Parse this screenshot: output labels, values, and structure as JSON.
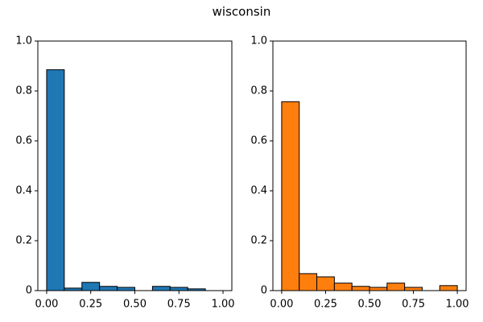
{
  "title": "wisconsin",
  "chart_data": [
    {
      "type": "histogram",
      "color": "#1f77b4",
      "bins": [
        0,
        0.1,
        0.2,
        0.3,
        0.4,
        0.5,
        0.6,
        0.7,
        0.8,
        0.9,
        1.0
      ],
      "values": [
        0.885,
        0.01,
        0.033,
        0.017,
        0.013,
        0,
        0.017,
        0.013,
        0.007,
        0
      ],
      "xlim": [
        -0.05,
        1.05
      ],
      "ylim": [
        0,
        1
      ],
      "xticks": [
        {
          "value": 0,
          "label": "0.00"
        },
        {
          "value": 0.25,
          "label": "0.25"
        },
        {
          "value": 0.5,
          "label": "0.50"
        },
        {
          "value": 0.75,
          "label": "0.75"
        },
        {
          "value": 1,
          "label": "1.00"
        }
      ],
      "yticks": [
        0.0,
        0.2,
        0.4,
        0.6,
        0.8,
        {
          "value": 1,
          "label": "1.0"
        }
      ]
    },
    {
      "type": "histogram",
      "color": "#ff7f0e",
      "bins": [
        0,
        0.1,
        0.2,
        0.3,
        0.4,
        0.5,
        0.6,
        0.7,
        0.8,
        0.9,
        1.0
      ],
      "values": [
        0.757,
        0.068,
        0.055,
        0.03,
        0.017,
        0.013,
        0.03,
        0.013,
        0,
        0.02
      ],
      "xlim": [
        -0.05,
        1.05
      ],
      "ylim": [
        0,
        1
      ],
      "xticks": [
        {
          "value": 0,
          "label": "0.00"
        },
        {
          "value": 0.25,
          "label": "0.25"
        },
        {
          "value": 0.5,
          "label": "0.50"
        },
        {
          "value": 0.75,
          "label": "0.75"
        },
        {
          "value": 1,
          "label": "1.00"
        }
      ],
      "yticks": [
        0.0,
        0.2,
        0.4,
        0.6,
        0.8,
        {
          "value": 1,
          "label": "1.0"
        }
      ]
    }
  ]
}
